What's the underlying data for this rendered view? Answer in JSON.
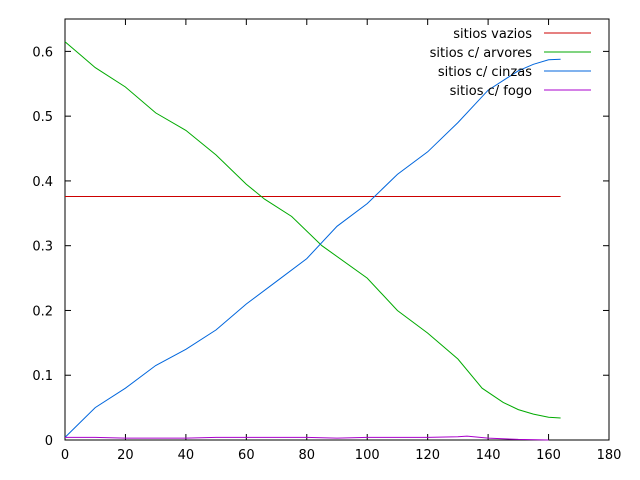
{
  "chart_data": {
    "type": "line",
    "title": "",
    "xlabel": "",
    "ylabel": "",
    "xlim": [
      0,
      180
    ],
    "ylim": [
      0,
      0.65
    ],
    "x_ticks": [
      0,
      20,
      40,
      60,
      80,
      100,
      120,
      140,
      160,
      180
    ],
    "y_ticks": [
      0,
      0.1,
      0.2,
      0.3,
      0.4,
      0.5,
      0.6
    ],
    "x_tick_labels": [
      "0",
      "20",
      "40",
      "60",
      "80",
      "100",
      "120",
      "140",
      "160",
      "180"
    ],
    "y_tick_labels": [
      "0",
      "0.1",
      "0.2",
      "0.3",
      "0.4",
      "0.5",
      "0.6"
    ],
    "grid": false,
    "legend_position": "top-right",
    "series": [
      {
        "name": "sitios vazios",
        "color": "#cc0000",
        "x": [
          0,
          164
        ],
        "y": [
          0.376,
          0.376
        ]
      },
      {
        "name": "sitios c/ arvores",
        "color": "#00aa00",
        "x": [
          0,
          5,
          10,
          20,
          30,
          40,
          50,
          60,
          66,
          75,
          85,
          100,
          110,
          120,
          130,
          138,
          145,
          150,
          155,
          160,
          164
        ],
        "y": [
          0.615,
          0.595,
          0.575,
          0.545,
          0.505,
          0.478,
          0.44,
          0.395,
          0.372,
          0.345,
          0.3,
          0.25,
          0.2,
          0.165,
          0.125,
          0.08,
          0.058,
          0.047,
          0.04,
          0.035,
          0.034
        ]
      },
      {
        "name": "sitios c/ cinzas",
        "color": "#0066dd",
        "x": [
          0,
          10,
          20,
          30,
          40,
          50,
          60,
          70,
          80,
          90,
          100,
          110,
          120,
          130,
          140,
          150,
          155,
          160,
          164
        ],
        "y": [
          0.004,
          0.05,
          0.08,
          0.115,
          0.14,
          0.17,
          0.21,
          0.245,
          0.28,
          0.33,
          0.365,
          0.41,
          0.445,
          0.49,
          0.54,
          0.57,
          0.58,
          0.587,
          0.588
        ]
      },
      {
        "name": "sitios c/ fogo",
        "color": "#aa00cc",
        "x": [
          0,
          10,
          20,
          30,
          40,
          50,
          60,
          70,
          80,
          90,
          100,
          110,
          120,
          130,
          133,
          140,
          150,
          160
        ],
        "y": [
          0.004,
          0.004,
          0.003,
          0.003,
          0.003,
          0.004,
          0.004,
          0.004,
          0.004,
          0.003,
          0.004,
          0.004,
          0.004,
          0.005,
          0.006,
          0.003,
          0.001,
          0.0
        ]
      }
    ]
  }
}
